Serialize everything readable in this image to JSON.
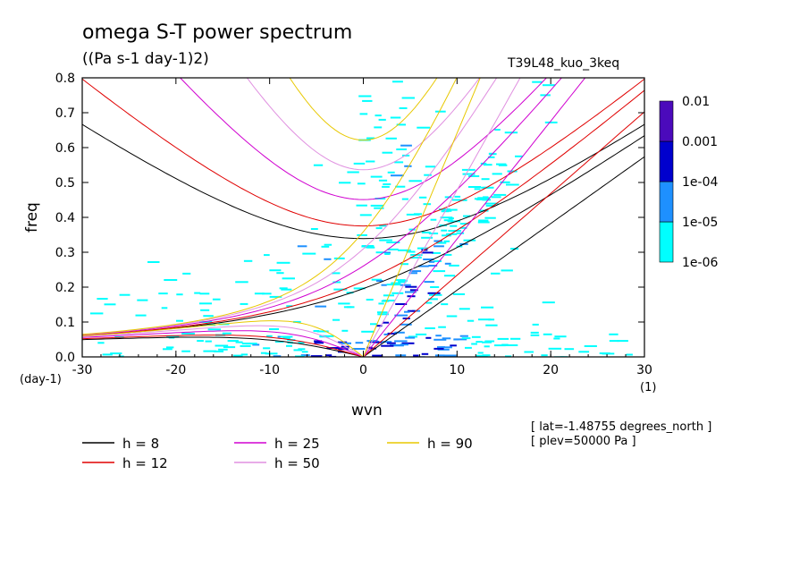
{
  "header": {
    "title": "omega S-T power spectrum",
    "subtitle": "((Pa s-1 day-1)2)",
    "run_id": "T39L48_kuo_3keq"
  },
  "chart_data": {
    "type": "heatmap",
    "xlabel": "wvn",
    "ylabel": "freq",
    "x_unit": "(1)",
    "y_unit": "(day-1)",
    "xlim": [
      -30,
      30
    ],
    "ylim": [
      0,
      0.8
    ],
    "x_ticks": [
      "-30",
      "-20",
      "-10",
      "0",
      "10",
      "20",
      "30"
    ],
    "y_ticks": [
      "0.0",
      "0.1",
      "0.2",
      "0.3",
      "0.4",
      "0.5",
      "0.6",
      "0.7",
      "0.8"
    ],
    "colorbar": {
      "levels": [
        "1e-06",
        "1e-05",
        "1e-04",
        "0.001",
        "0.01"
      ],
      "colors": [
        "#00ffff",
        "#1e90ff",
        "#0000cd",
        "#4b0abb"
      ]
    },
    "dispersion_curves": [
      {
        "name": "h =  8",
        "h": 8,
        "color": "#000000"
      },
      {
        "name": "h = 12",
        "h": 12,
        "color": "#e00000"
      },
      {
        "name": "h = 25",
        "h": 25,
        "color": "#d000d0"
      },
      {
        "name": "h = 50",
        "h": 50,
        "color": "#e090e0"
      },
      {
        "name": "h = 90",
        "h": 90,
        "color": "#e8c800"
      }
    ],
    "legend_placement": "bottom"
  },
  "annotations": {
    "lat": "[ lat=-1.48755 degrees_north ]",
    "plev": "[ plev=50000 Pa ]"
  }
}
